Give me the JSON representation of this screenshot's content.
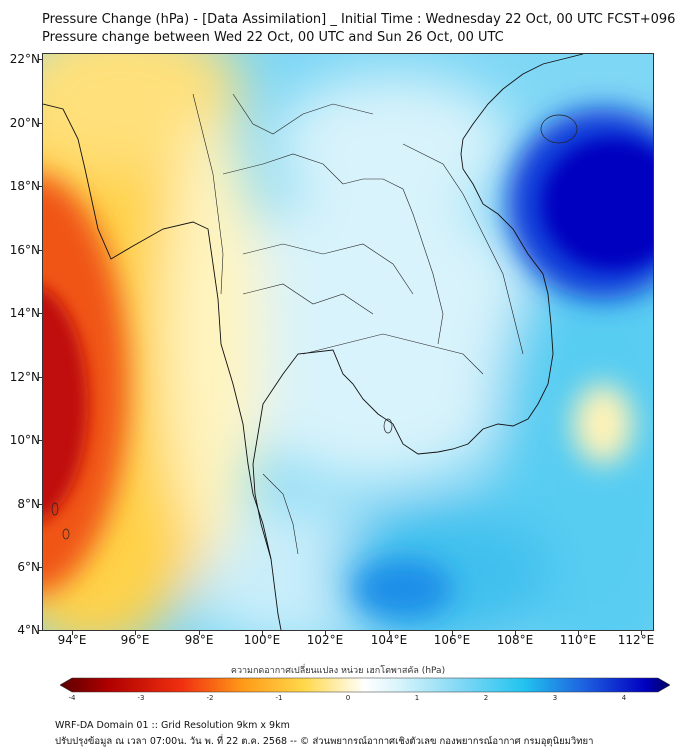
{
  "titles": {
    "line1": "Pressure Change (hPa) - [Data Assimilation] _ Initial Time : Wednesday 22 Oct, 00 UTC FCST+096",
    "line2": "Pressure change between Wed 22 Oct, 00 UTC and Sun 26 Oct, 00 UTC"
  },
  "axes": {
    "lat_labels": [
      "22°N",
      "20°N",
      "18°N",
      "16°N",
      "14°N",
      "12°N",
      "10°N",
      "8°N",
      "6°N",
      "4°N"
    ],
    "lon_labels": [
      "94°E",
      "96°E",
      "98°E",
      "100°E",
      "102°E",
      "104°E",
      "106°E",
      "108°E",
      "110°E",
      "112°E"
    ],
    "lat_range": [
      4,
      22.2
    ],
    "lon_range": [
      93.1,
      112.4
    ]
  },
  "colorbar": {
    "title": "ความกดอากาศเปลี่ยนแปลง หน่วย เฮกโตพาสคัล (hPa)",
    "labels": [
      "-4",
      "-3",
      "-2",
      "-1",
      "0",
      "1",
      "2",
      "3",
      "4"
    ],
    "range": [
      -4,
      4
    ]
  },
  "footer": {
    "line1": "WRF-DA Domain 01 :: Grid Resolution 9km x 9km",
    "line2": "ปรับปรุงข้อมูล ณ เวลา 07:00น. วัน พ. ที่ 22 ต.ค. 2568 -- © ส่วนพยากรณ์อากาศเชิงตัวเลข กองพยากรณ์อากาศ กรมอุตุนิยมวิทยา"
  },
  "colors": {
    "negative_deep": "#b00000",
    "negative": "#f03010",
    "negative_light": "#ffd84a",
    "neutral": "#ffffff",
    "positive_light": "#bfeefa",
    "positive": "#22c4ef",
    "positive_deep": "#0000c8"
  }
}
